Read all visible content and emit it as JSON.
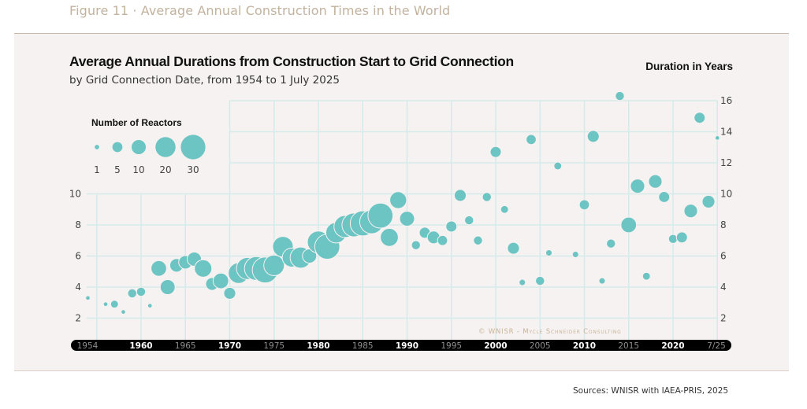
{
  "figure_title": "Figure 11 · Average Annual Construction Times in the World",
  "sources": "Sources: WNISR with IAEA-PRIS, 2025",
  "copyright": "© WNISR - Mycle Schneider Consulting",
  "colors": {
    "bubble": "#6cc4c3",
    "grid": "#d4ebea",
    "axis_bar": "#000000",
    "panel_bg": "#f6f2f1",
    "figure_title": "#c2b29e"
  },
  "chart_data": {
    "type": "scatter",
    "title": "Average Annual Durations from Construction Start to Grid Connection",
    "subtitle": "by Grid Connection Date, from 1954 to 1 July 2025",
    "xlabel": "",
    "ylabel": "Duration in Years",
    "ylim": [
      0,
      16
    ],
    "xlim": [
      1954,
      2025
    ],
    "grid": true,
    "left_y_ticks": [
      2,
      4,
      6,
      8,
      10
    ],
    "right_y_ticks": [
      2,
      4,
      6,
      8,
      10,
      12,
      14,
      16
    ],
    "x_ticks": [
      {
        "label": "1954",
        "year": 1954,
        "bold": false
      },
      {
        "label": "1960",
        "year": 1960,
        "bold": true
      },
      {
        "label": "1965",
        "year": 1965,
        "bold": false
      },
      {
        "label": "1970",
        "year": 1970,
        "bold": true
      },
      {
        "label": "1975",
        "year": 1975,
        "bold": false
      },
      {
        "label": "1980",
        "year": 1980,
        "bold": true
      },
      {
        "label": "1985",
        "year": 1985,
        "bold": false
      },
      {
        "label": "1990",
        "year": 1990,
        "bold": true
      },
      {
        "label": "1995",
        "year": 1995,
        "bold": false
      },
      {
        "label": "2000",
        "year": 2000,
        "bold": true
      },
      {
        "label": "2005",
        "year": 2005,
        "bold": false
      },
      {
        "label": "2010",
        "year": 2010,
        "bold": true
      },
      {
        "label": "2015",
        "year": 2015,
        "bold": false
      },
      {
        "label": "2020",
        "year": 2020,
        "bold": true
      },
      {
        "label": "7/25",
        "year": 2025,
        "bold": false
      }
    ],
    "legend": {
      "title": "Number of Reactors",
      "placement": "top-left",
      "sizes": [
        1,
        5,
        10,
        20,
        30
      ]
    },
    "points": [
      {
        "year": 1954,
        "duration": 3.3,
        "reactors": 1
      },
      {
        "year": 1956,
        "duration": 2.9,
        "reactors": 1
      },
      {
        "year": 1957,
        "duration": 2.9,
        "reactors": 3
      },
      {
        "year": 1958,
        "duration": 2.4,
        "reactors": 1
      },
      {
        "year": 1959,
        "duration": 3.6,
        "reactors": 4
      },
      {
        "year": 1960,
        "duration": 3.7,
        "reactors": 4
      },
      {
        "year": 1961,
        "duration": 2.8,
        "reactors": 1
      },
      {
        "year": 1962,
        "duration": 5.2,
        "reactors": 12
      },
      {
        "year": 1963,
        "duration": 4.0,
        "reactors": 11
      },
      {
        "year": 1964,
        "duration": 5.4,
        "reactors": 9
      },
      {
        "year": 1965,
        "duration": 5.6,
        "reactors": 9
      },
      {
        "year": 1966,
        "duration": 5.8,
        "reactors": 10
      },
      {
        "year": 1967,
        "duration": 5.2,
        "reactors": 15
      },
      {
        "year": 1968,
        "duration": 4.2,
        "reactors": 8
      },
      {
        "year": 1969,
        "duration": 4.4,
        "reactors": 12
      },
      {
        "year": 1970,
        "duration": 3.6,
        "reactors": 7
      },
      {
        "year": 1971,
        "duration": 4.9,
        "reactors": 21
      },
      {
        "year": 1972,
        "duration": 5.2,
        "reactors": 24
      },
      {
        "year": 1973,
        "duration": 5.2,
        "reactors": 28
      },
      {
        "year": 1974,
        "duration": 5.1,
        "reactors": 33
      },
      {
        "year": 1975,
        "duration": 5.4,
        "reactors": 21
      },
      {
        "year": 1976,
        "duration": 6.6,
        "reactors": 21
      },
      {
        "year": 1977,
        "duration": 5.9,
        "reactors": 18
      },
      {
        "year": 1978,
        "duration": 5.9,
        "reactors": 22
      },
      {
        "year": 1979,
        "duration": 6.0,
        "reactors": 10
      },
      {
        "year": 1980,
        "duration": 6.9,
        "reactors": 24
      },
      {
        "year": 1981,
        "duration": 6.6,
        "reactors": 31
      },
      {
        "year": 1982,
        "duration": 7.5,
        "reactors": 21
      },
      {
        "year": 1983,
        "duration": 7.9,
        "reactors": 24
      },
      {
        "year": 1984,
        "duration": 8.0,
        "reactors": 28
      },
      {
        "year": 1985,
        "duration": 8.1,
        "reactors": 31
      },
      {
        "year": 1986,
        "duration": 8.2,
        "reactors": 28
      },
      {
        "year": 1987,
        "duration": 8.6,
        "reactors": 31
      },
      {
        "year": 1988,
        "duration": 7.2,
        "reactors": 16
      },
      {
        "year": 1989,
        "duration": 9.6,
        "reactors": 14
      },
      {
        "year": 1990,
        "duration": 8.4,
        "reactors": 11
      },
      {
        "year": 1991,
        "duration": 6.7,
        "reactors": 4
      },
      {
        "year": 1992,
        "duration": 7.5,
        "reactors": 6
      },
      {
        "year": 1993,
        "duration": 7.2,
        "reactors": 8
      },
      {
        "year": 1994,
        "duration": 7.0,
        "reactors": 5
      },
      {
        "year": 1995,
        "duration": 7.9,
        "reactors": 6
      },
      {
        "year": 1996,
        "duration": 9.9,
        "reactors": 7
      },
      {
        "year": 1997,
        "duration": 8.3,
        "reactors": 4
      },
      {
        "year": 1998,
        "duration": 7.0,
        "reactors": 4
      },
      {
        "year": 1999,
        "duration": 9.8,
        "reactors": 4
      },
      {
        "year": 2000,
        "duration": 12.7,
        "reactors": 6
      },
      {
        "year": 2001,
        "duration": 9.0,
        "reactors": 3
      },
      {
        "year": 2002,
        "duration": 6.5,
        "reactors": 7
      },
      {
        "year": 2003,
        "duration": 4.3,
        "reactors": 2
      },
      {
        "year": 2004,
        "duration": 13.5,
        "reactors": 5
      },
      {
        "year": 2005,
        "duration": 4.4,
        "reactors": 4
      },
      {
        "year": 2006,
        "duration": 6.2,
        "reactors": 2
      },
      {
        "year": 2007,
        "duration": 11.8,
        "reactors": 3
      },
      {
        "year": 2009,
        "duration": 6.1,
        "reactors": 2
      },
      {
        "year": 2010,
        "duration": 9.3,
        "reactors": 5
      },
      {
        "year": 2011,
        "duration": 13.7,
        "reactors": 7
      },
      {
        "year": 2012,
        "duration": 4.4,
        "reactors": 2
      },
      {
        "year": 2013,
        "duration": 6.8,
        "reactors": 4
      },
      {
        "year": 2014,
        "duration": 16.3,
        "reactors": 4
      },
      {
        "year": 2015,
        "duration": 8.0,
        "reactors": 12
      },
      {
        "year": 2016,
        "duration": 10.5,
        "reactors": 10
      },
      {
        "year": 2017,
        "duration": 4.7,
        "reactors": 3
      },
      {
        "year": 2018,
        "duration": 10.8,
        "reactors": 9
      },
      {
        "year": 2019,
        "duration": 9.8,
        "reactors": 6
      },
      {
        "year": 2020,
        "duration": 7.1,
        "reactors": 4
      },
      {
        "year": 2021,
        "duration": 7.2,
        "reactors": 6
      },
      {
        "year": 2022,
        "duration": 8.9,
        "reactors": 9
      },
      {
        "year": 2023,
        "duration": 14.9,
        "reactors": 6
      },
      {
        "year": 2024,
        "duration": 9.5,
        "reactors": 8
      },
      {
        "year": 2025,
        "duration": 13.6,
        "reactors": 1
      }
    ]
  }
}
